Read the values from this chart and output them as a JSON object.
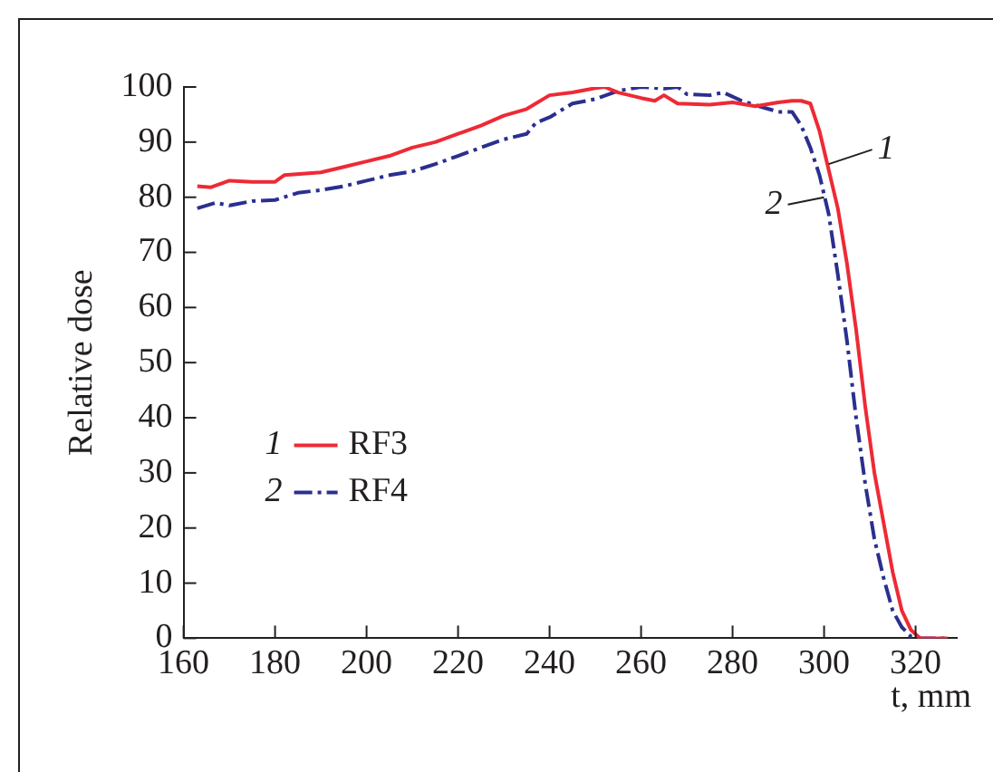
{
  "chart_data": {
    "type": "line",
    "xlabel": "t, mm",
    "ylabel": "Relative dose",
    "xlim": [
      160,
      329
    ],
    "xticks": [
      160,
      180,
      200,
      220,
      240,
      260,
      280,
      300,
      320
    ],
    "ylim": [
      0,
      100
    ],
    "yticks": [
      0,
      10,
      20,
      30,
      40,
      50,
      60,
      70,
      80,
      90,
      100
    ],
    "grid": false,
    "legend": "left",
    "marker": "none",
    "annotations": [
      {
        "text": "1",
        "x": 301,
        "y": 86
      },
      {
        "text": "2",
        "x": 300,
        "y": 80
      }
    ],
    "series": [
      {
        "name": "RF3",
        "color": "#ee2a35",
        "line_style": "solid",
        "x": [
          163,
          166,
          170,
          175,
          180,
          182,
          190,
          195,
          200,
          205,
          210,
          215,
          220,
          225,
          230,
          235,
          240,
          245,
          250,
          252,
          255,
          260,
          263,
          265,
          268,
          275,
          280,
          285,
          290,
          293,
          295,
          297,
          299,
          301,
          303,
          305,
          307,
          309,
          311,
          313,
          315,
          317,
          319,
          321,
          327
        ],
        "values": [
          82,
          81.8,
          83,
          82.8,
          82.8,
          84,
          84.5,
          85.5,
          86.5,
          87.5,
          89,
          90,
          91.5,
          93,
          94.8,
          96,
          98.5,
          99,
          99.8,
          100,
          99,
          98,
          97.5,
          98.5,
          97,
          96.8,
          97.2,
          96.5,
          97.2,
          97.5,
          97.5,
          97,
          92,
          85,
          78,
          68,
          56,
          42,
          30,
          21,
          12,
          5,
          1.5,
          0,
          0
        ]
      },
      {
        "name": "RF4",
        "color": "#2b2f8f",
        "line_style": "dashed",
        "x": [
          163,
          167,
          170,
          175,
          180,
          185,
          190,
          195,
          200,
          205,
          210,
          215,
          220,
          225,
          230,
          235,
          237,
          240,
          245,
          250,
          255,
          260,
          265,
          268,
          270,
          275,
          278,
          282,
          285,
          290,
          293,
          295,
          297,
          299,
          301,
          303,
          305,
          307,
          309,
          311,
          313,
          315,
          317,
          319,
          321,
          327
        ],
        "values": [
          78,
          79,
          78.5,
          79.3,
          79.5,
          80.8,
          81.3,
          82,
          83,
          84,
          84.7,
          86,
          87.5,
          89,
          90.5,
          91.5,
          93.5,
          94.5,
          97,
          97.8,
          99.3,
          100,
          99.7,
          100,
          98.7,
          98.5,
          99,
          97.5,
          96.7,
          95.5,
          95.5,
          93,
          89,
          84,
          77,
          66,
          54,
          40,
          28,
          18,
          11,
          5,
          2,
          0.3,
          0,
          0
        ]
      }
    ]
  }
}
